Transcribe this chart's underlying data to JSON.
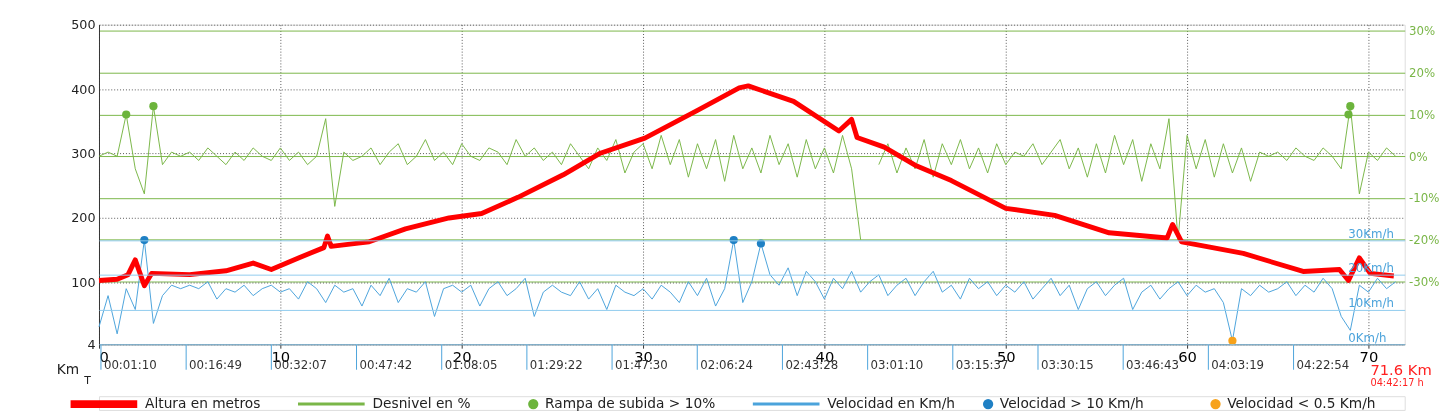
{
  "chart_data": {
    "type": "line",
    "xlim": [
      0,
      72
    ],
    "xticks": [
      0,
      10,
      20,
      30,
      40,
      50,
      60,
      70
    ],
    "ylim": [
      4,
      500
    ],
    "yticks": [
      4,
      100,
      200,
      300,
      400,
      500
    ],
    "y2lim": [
      -45,
      31.5
    ],
    "y2ticks": [
      {
        "value": 30,
        "label": "30%"
      },
      {
        "value": 20,
        "label": "20%"
      },
      {
        "value": 10,
        "label": "10%"
      },
      {
        "value": 0,
        "label": "0%"
      },
      {
        "value": -10,
        "label": "-10%"
      },
      {
        "value": -20,
        "label": "-20%"
      },
      {
        "value": -30,
        "label": "-30%"
      }
    ],
    "y3lim": [
      0,
      92
    ],
    "y3ticks": [
      {
        "value": 0,
        "label": "0Km/h"
      },
      {
        "value": 10,
        "label": "10Km/h"
      },
      {
        "value": 20,
        "label": "20Km/h"
      },
      {
        "value": 30,
        "label": "30Km/h"
      }
    ],
    "grid": true,
    "legend": "bottom",
    "annotations": [
      "Km",
      "T",
      "71.6 Km",
      "04:42:17 h",
      "00:01:10",
      "00:16:49",
      "00:32:07",
      "00:47:42",
      "01:08:05",
      "01:29:22",
      "01:47:30",
      "02:06:24",
      "02:43:28",
      "03:01:10",
      "03:15:37",
      "03:30:15",
      "03:46:43",
      "04:03:19",
      "04:22:54"
    ],
    "series": [
      {
        "name": "Velocidad en Km/h",
        "axis": "y3",
        "color": "#4ba3db",
        "x": [
          0,
          0.5,
          1,
          1.5,
          2,
          2.5,
          3,
          3.5,
          4,
          4.5,
          5,
          5.5,
          6,
          6.5,
          7,
          7.5,
          8,
          8.5,
          9,
          9.5,
          10,
          10.5,
          11,
          11.5,
          12,
          12.5,
          13,
          13.5,
          14,
          14.5,
          15,
          15.5,
          16,
          16.5,
          17,
          17.5,
          18,
          18.5,
          19,
          19.5,
          20,
          20.5,
          21,
          21.5,
          22,
          22.5,
          23,
          23.5,
          24,
          24.5,
          25,
          25.5,
          26,
          26.5,
          27,
          27.5,
          28,
          28.5,
          29,
          29.5,
          30,
          30.5,
          31,
          31.5,
          32,
          32.5,
          33,
          33.5,
          34,
          34.5,
          35,
          35.5,
          36,
          36.5,
          37,
          37.5,
          38,
          38.5,
          39,
          39.5,
          40,
          40.5,
          41,
          41.5,
          42,
          42.5,
          43,
          43.5,
          44,
          44.5,
          45,
          45.5,
          46,
          46.5,
          47,
          47.5,
          48,
          48.5,
          49,
          49.5,
          50,
          50.5,
          51,
          51.5,
          52,
          52.5,
          53,
          53.5,
          54,
          54.5,
          55,
          55.5,
          56,
          56.5,
          57,
          57.5,
          58,
          58.5,
          59,
          59.5,
          60,
          60.5,
          61,
          61.5,
          62,
          62.5,
          63,
          63.5,
          64,
          64.5,
          65,
          65.5,
          66,
          66.5,
          67,
          67.5,
          68,
          68.5,
          69,
          69.5,
          70,
          70.5,
          71,
          71.5
        ],
        "values": [
          5,
          14,
          3,
          16,
          10,
          30,
          6,
          14,
          17,
          16,
          17,
          16,
          18,
          13,
          16,
          15,
          17,
          14,
          16,
          17,
          15,
          16,
          13,
          18,
          16,
          12,
          17,
          15,
          16,
          11,
          17,
          14,
          19,
          12,
          16,
          15,
          18,
          8,
          16,
          17,
          15,
          17,
          11,
          16,
          18,
          14,
          16,
          19,
          8,
          15,
          17,
          15,
          14,
          18,
          13,
          16,
          10,
          17,
          15,
          14,
          16,
          13,
          17,
          15,
          12,
          18,
          14,
          19,
          11,
          16,
          30,
          12,
          18,
          29,
          20,
          17,
          22,
          14,
          21,
          18,
          13,
          19,
          16,
          21,
          15,
          18,
          20,
          14,
          17,
          19,
          14,
          18,
          21,
          15,
          17,
          13,
          19,
          16,
          18,
          14,
          17,
          15,
          18,
          13,
          16,
          19,
          14,
          17,
          10,
          16,
          18,
          14,
          17,
          19,
          10,
          15,
          17,
          13,
          16,
          18,
          14,
          17,
          15,
          16,
          12,
          1,
          16,
          14,
          17,
          15,
          16,
          18,
          14,
          17,
          15,
          19,
          16,
          8,
          4,
          17,
          15,
          19,
          16,
          18
        ]
      },
      {
        "name": "Velocidad > 10 Km/h",
        "type": "scatter",
        "axis": "y3",
        "color": "#1f80c4",
        "marker": "circle",
        "x": [
          2.5,
          35,
          36.5
        ],
        "values": [
          30,
          30,
          29
        ]
      },
      {
        "name": "Velocidad < 0.5 Km/h",
        "type": "scatter",
        "axis": "y3",
        "color": "#f7a21b",
        "marker": "circle",
        "x": [
          62.5
        ],
        "values": [
          1
        ]
      },
      {
        "name": "Desnivel en %",
        "axis": "y2",
        "color": "#7ab648",
        "x": [
          0,
          0.5,
          1,
          1.5,
          2,
          2.5,
          3,
          3.5,
          4,
          4.5,
          5,
          5.5,
          6,
          6.5,
          7,
          7.5,
          8,
          8.5,
          9,
          9.5,
          10,
          10.5,
          11,
          11.5,
          12,
          12.5,
          13,
          13.5,
          14,
          14.5,
          15,
          15.5,
          16,
          16.5,
          17,
          17.5,
          18,
          18.5,
          19,
          19.5,
          20,
          20.5,
          21,
          21.5,
          22,
          22.5,
          23,
          23.5,
          24,
          24.5,
          25,
          25.5,
          26,
          26.5,
          27,
          27.5,
          28,
          28.5,
          29,
          29.5,
          30,
          30.5,
          31,
          31.5,
          32,
          32.5,
          33,
          33.5,
          34,
          34.5,
          35,
          35.5,
          36,
          36.5,
          37,
          37.5,
          38,
          38.5,
          39,
          39.5,
          40,
          40.5,
          41,
          41.5,
          42,
          42.5,
          43,
          43.5,
          44,
          44.5,
          45,
          45.5,
          46,
          46.5,
          47,
          47.5,
          48,
          48.5,
          49,
          49.5,
          50,
          50.5,
          51,
          51.5,
          52,
          52.5,
          53,
          53.5,
          54,
          54.5,
          55,
          55.5,
          56,
          56.5,
          57,
          57.5,
          58,
          58.5,
          59,
          59.5,
          60,
          60.5,
          61,
          61.5,
          62,
          62.5,
          63,
          63.5,
          64,
          64.5,
          65,
          65.5,
          66,
          66.5,
          67,
          67.5,
          68,
          68.5,
          69,
          69.5,
          70,
          70.5,
          71,
          71.5
        ],
        "values": [
          0,
          1,
          0,
          10,
          -3,
          -9,
          12,
          -2,
          1,
          0,
          1,
          -1,
          2,
          0,
          -2,
          1,
          -1,
          2,
          0,
          -1,
          2,
          -1,
          1,
          -2,
          0,
          9,
          -12,
          1,
          -1,
          0,
          2,
          -2,
          1,
          3,
          -2,
          0,
          4,
          -1,
          1,
          -2,
          3,
          0,
          -1,
          2,
          1,
          -2,
          4,
          0,
          2,
          -1,
          1,
          -2,
          3,
          0,
          -3,
          2,
          -1,
          4,
          -4,
          1,
          3,
          -3,
          5,
          -2,
          4,
          -5,
          3,
          -3,
          4,
          -6,
          5,
          -3,
          2,
          -4,
          5,
          -2,
          3,
          -5,
          4,
          -3,
          2,
          -4,
          5,
          -3,
          -20,
          null,
          -2,
          3,
          -4,
          2,
          -3,
          4,
          -5,
          3,
          -2,
          4,
          -3,
          2,
          -4,
          3,
          -2,
          1,
          0,
          3,
          -2,
          1,
          4,
          -3,
          2,
          -5,
          3,
          -4,
          5,
          -2,
          4,
          -6,
          3,
          -3,
          9,
          -20,
          5,
          -3,
          4,
          -5,
          3,
          -4,
          2,
          -6,
          1,
          0,
          1,
          -1,
          2,
          0,
          -1,
          2,
          0,
          -3,
          12,
          -9,
          1,
          -1,
          2,
          0
        ]
      },
      {
        "name": "Rampa de subida > 10%",
        "type": "scatter",
        "axis": "y2",
        "color": "#6cb43c",
        "marker": "circle",
        "x": [
          1.5,
          3,
          68.9,
          69
        ],
        "values": [
          10,
          12,
          10,
          12
        ]
      },
      {
        "name": "Altura en metros",
        "axis": "y",
        "color": "#ff0000",
        "x": [
          0,
          1,
          1.6,
          2,
          2.5,
          2.9,
          5,
          7,
          8.5,
          9.5,
          11,
          12.4,
          12.6,
          12.8,
          14.3,
          14.9,
          16.9,
          19.3,
          21.1,
          23.1,
          25.6,
          27.6,
          30.1,
          33,
          35.3,
          35.8,
          38.3,
          40.8,
          41.5,
          41.8,
          43.3,
          45,
          47,
          50,
          52.7,
          55.7,
          58.9,
          59.2,
          59.7,
          63.1,
          66.4,
          68.4,
          68.9,
          69.5,
          70.1,
          71.4
        ],
        "values": [
          103,
          105,
          112,
          135,
          95,
          114,
          112,
          118,
          130,
          120,
          138,
          154,
          172,
          156,
          161,
          163,
          183,
          200,
          207,
          232,
          267,
          300,
          324,
          367,
          402,
          405,
          381,
          335,
          353,
          325,
          310,
          282,
          258,
          215,
          204,
          177,
          169,
          190,
          163,
          145,
          117,
          120,
          103,
          138,
          114,
          110
        ]
      }
    ]
  }
}
